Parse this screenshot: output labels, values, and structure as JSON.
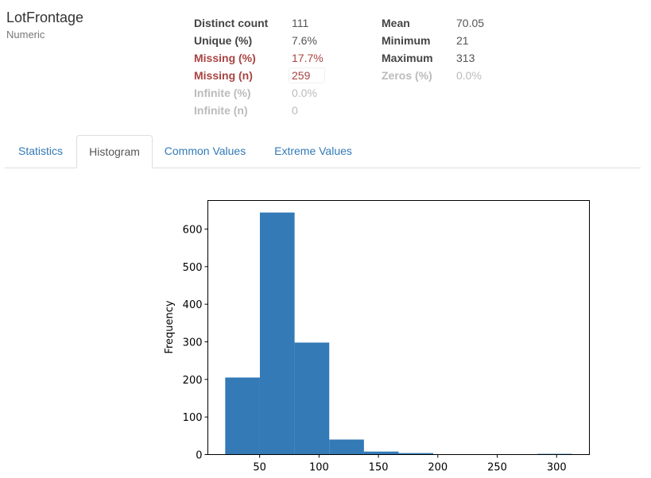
{
  "variable": {
    "name": "LotFrontage",
    "type": "Numeric"
  },
  "stats_left": [
    {
      "label": "Distinct count",
      "value": "111",
      "state": "normal"
    },
    {
      "label": "Unique (%)",
      "value": "7.6%",
      "state": "normal"
    },
    {
      "label": "Missing (%)",
      "value": "17.7%",
      "state": "alert"
    },
    {
      "label": "Missing (n)",
      "value": "259",
      "state": "alert"
    },
    {
      "label": "Infinite (%)",
      "value": "0.0%",
      "state": "ignore"
    },
    {
      "label": "Infinite (n)",
      "value": "0",
      "state": "ignore"
    }
  ],
  "stats_right": [
    {
      "label": "Mean",
      "value": "70.05",
      "state": "normal"
    },
    {
      "label": "Minimum",
      "value": "21",
      "state": "normal"
    },
    {
      "label": "Maximum",
      "value": "313",
      "state": "normal"
    },
    {
      "label": "Zeros (%)",
      "value": "0.0%",
      "state": "ignore"
    }
  ],
  "tabs": [
    {
      "label": "Statistics",
      "active": false
    },
    {
      "label": "Histogram",
      "active": true
    },
    {
      "label": "Common Values",
      "active": false
    },
    {
      "label": "Extreme Values",
      "active": false
    }
  ],
  "colors": {
    "bar": "#337ab7",
    "link": "#337ab7",
    "alert": "#a94442"
  },
  "chart_data": {
    "type": "bar",
    "title": "",
    "xlabel": "",
    "ylabel": "Frequency",
    "bin_edges": [
      21,
      50.2,
      79.4,
      108.6,
      137.8,
      167,
      196.2,
      225.4,
      254.6,
      283.8,
      313
    ],
    "values": [
      205,
      644,
      298,
      40,
      8,
      4,
      0,
      0,
      0,
      2
    ],
    "xlim": [
      6.4,
      327.6
    ],
    "ylim": [
      0,
      676
    ],
    "xticks": [
      50,
      100,
      150,
      200,
      250,
      300
    ],
    "yticks": [
      0,
      100,
      200,
      300,
      400,
      500,
      600
    ]
  }
}
